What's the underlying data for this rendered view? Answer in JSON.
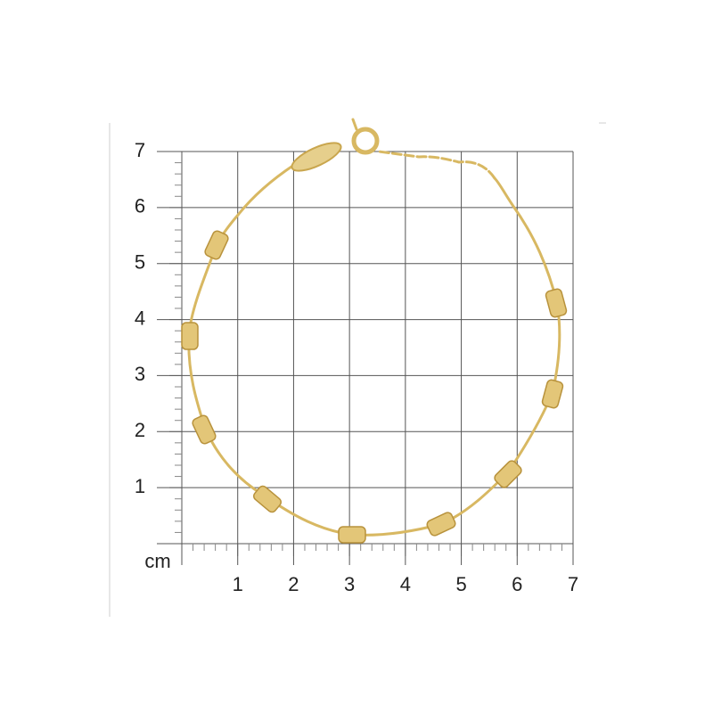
{
  "ruler": {
    "unit": "cm",
    "xticks": [
      1,
      2,
      3,
      4,
      5,
      6,
      7
    ],
    "yticks": [
      1,
      2,
      3,
      4,
      5,
      6,
      7
    ]
  }
}
